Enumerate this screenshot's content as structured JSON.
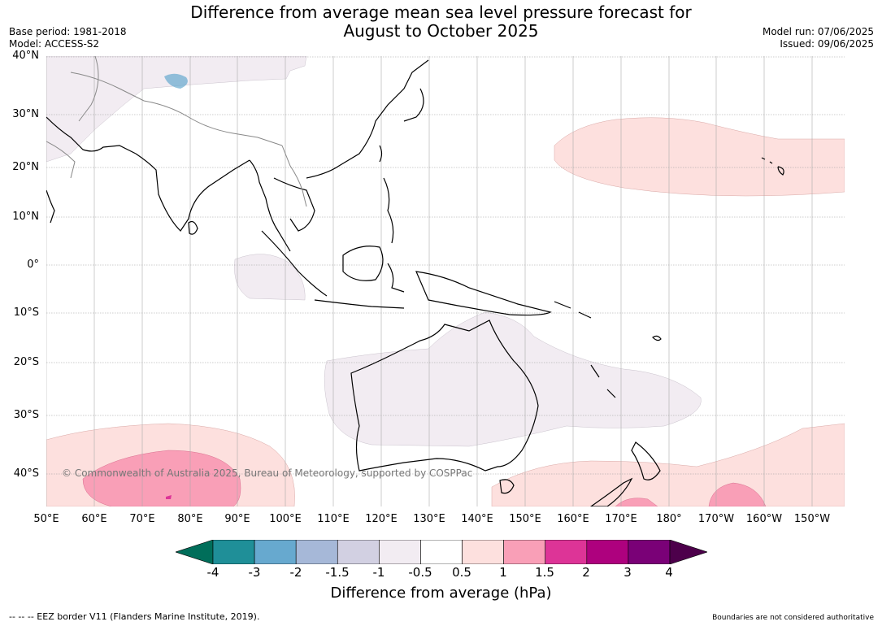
{
  "title_line1": "Difference from average mean sea level pressure forecast for",
  "title_line2": "August to October 2025",
  "meta_left": {
    "base_period": "Base period: 1981-2018",
    "model": "Model: ACCESS-S2"
  },
  "meta_right": {
    "model_run": "Model run: 07/06/2025",
    "issued": "Issued: 09/06/2025"
  },
  "lat_labels": [
    "40°N",
    "30°N",
    "20°N",
    "10°N",
    "0°",
    "10°S",
    "20°S",
    "30°S",
    "40°S"
  ],
  "lon_labels": [
    "50°E",
    "60°E",
    "70°E",
    "80°E",
    "90°E",
    "100°E",
    "110°E",
    "120°E",
    "130°E",
    "140°E",
    "150°E",
    "160°E",
    "170°E",
    "180°",
    "170°W",
    "160°W",
    "150°W"
  ],
  "copyright": "© Commonwealth of Australia 2025, Bureau of Meteorology, supported by COSPPac",
  "colorbar": {
    "ticks": [
      "-4",
      "-3",
      "-2",
      "-1.5",
      "-1",
      "-0.5",
      "0.5",
      "1",
      "1.5",
      "2",
      "3",
      "4"
    ],
    "colors": [
      "#006e5a",
      "#1f8f98",
      "#67a9cf",
      "#a6b8d8",
      "#d2d0e2",
      "#f2ecf2",
      "#ffffff",
      "#fde0de",
      "#f99fb7",
      "#dd3497",
      "#ae017e",
      "#7a0177",
      "#4d004b"
    ],
    "title": "Difference from average (hPa)"
  },
  "footer_left": "--  --  -- EEZ border V11 (Flanders Marine Institute, 2019).",
  "footer_right": "Boundaries are not considered authoritative"
}
